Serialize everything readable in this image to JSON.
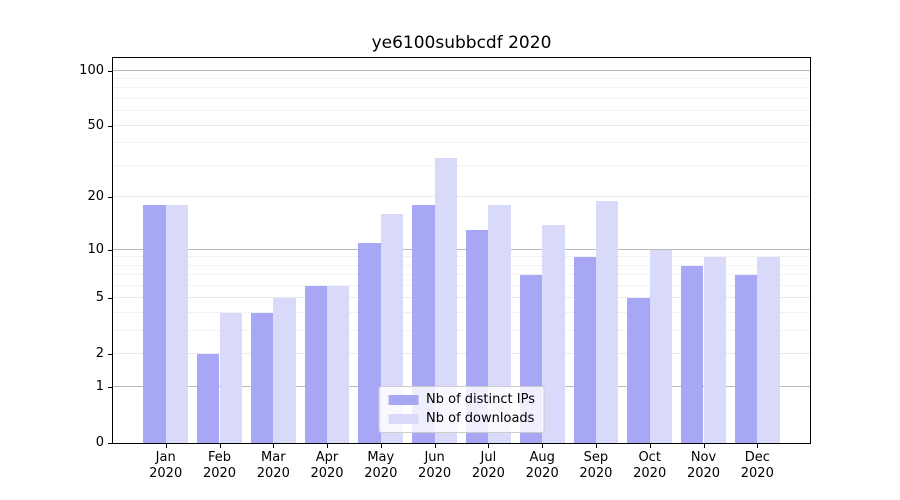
{
  "chart_data": {
    "type": "bar",
    "title": "ye6100subbcdf 2020",
    "categories": [
      "Jan 2020",
      "Feb 2020",
      "Mar 2020",
      "Apr 2020",
      "May 2020",
      "Jun 2020",
      "Jul 2020",
      "Aug 2020",
      "Sep 2020",
      "Oct 2020",
      "Nov 2020",
      "Dec 2020"
    ],
    "series": [
      {
        "name": "Nb of distinct IPs",
        "color": "#a7a7f5",
        "values": [
          18,
          2,
          4,
          6,
          11,
          18,
          13,
          7,
          9,
          5,
          8,
          7
        ]
      },
      {
        "name": "Nb of downloads",
        "color": "#d9d9fa",
        "values": [
          18,
          4,
          5,
          6,
          16,
          33,
          18,
          14,
          19,
          10,
          9,
          9
        ]
      }
    ],
    "xlabel": "",
    "ylabel": "",
    "yscale": "log1p",
    "ylim": [
      0,
      117
    ],
    "yticks": [
      100,
      50,
      20,
      10,
      5,
      2,
      1,
      0
    ],
    "strong_gridlines": [
      1,
      10,
      100
    ],
    "minor_gridlines": [
      3,
      4,
      6,
      7,
      8,
      9,
      30,
      40,
      60,
      70,
      80,
      90
    ],
    "grid": true,
    "legend_position": "lower center",
    "axis_color": "#000000"
  }
}
